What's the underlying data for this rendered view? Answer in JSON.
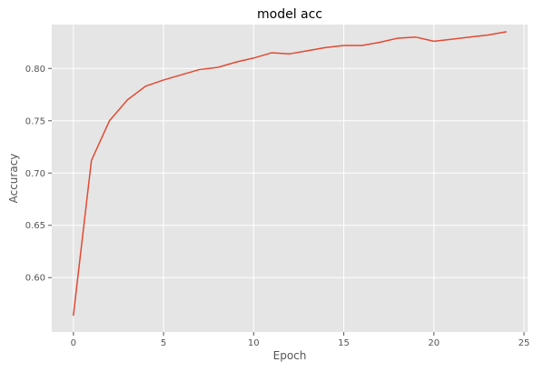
{
  "chart_data": {
    "type": "line",
    "title": "model acc",
    "xlabel": "Epoch",
    "ylabel": "Accuracy",
    "xlim": [
      -1.2,
      25.2
    ],
    "ylim": [
      0.548,
      0.842
    ],
    "xticks": [
      0,
      5,
      10,
      15,
      20,
      25
    ],
    "yticks": [
      0.6,
      0.65,
      0.7,
      0.75,
      0.8
    ],
    "xtick_labels": [
      "0",
      "5",
      "10",
      "15",
      "20",
      "25"
    ],
    "ytick_labels": [
      "0.60",
      "0.65",
      "0.70",
      "0.75",
      "0.80"
    ],
    "grid": true,
    "background_color": "#e5e5e5",
    "series": [
      {
        "color": "#e24a33",
        "x": [
          0,
          1,
          2,
          3,
          4,
          5,
          6,
          7,
          8,
          9,
          10,
          11,
          12,
          13,
          14,
          15,
          16,
          17,
          18,
          19,
          20,
          21,
          22,
          23,
          24
        ],
        "y": [
          0.564,
          0.712,
          0.75,
          0.77,
          0.783,
          0.789,
          0.794,
          0.799,
          0.801,
          0.806,
          0.81,
          0.815,
          0.814,
          0.817,
          0.82,
          0.822,
          0.822,
          0.825,
          0.829,
          0.83,
          0.826,
          0.828,
          0.83,
          0.832,
          0.835
        ]
      }
    ]
  }
}
